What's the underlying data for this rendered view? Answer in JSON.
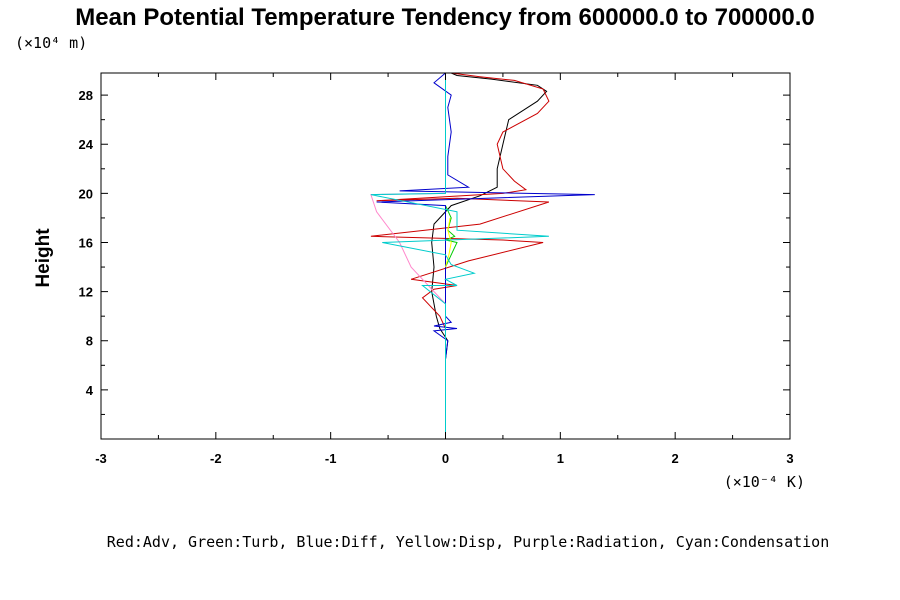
{
  "chart_data": {
    "type": "line",
    "title": "Mean Potential Temperature Tendency from 600000.0 to 700000.0",
    "ylabel": "Height",
    "y_unit": "(×10⁴ m)",
    "x_unit": "(×10⁻⁴ K)",
    "xlim": [
      -3,
      3
    ],
    "ylim": [
      0,
      29.8
    ],
    "x_ticks": [
      "-3",
      "-2",
      "-1",
      "0",
      "1",
      "2",
      "3"
    ],
    "y_ticks": [
      "4",
      "8",
      "12",
      "16",
      "20",
      "24",
      "28"
    ],
    "legend_text": "Red:Adv, Green:Turb, Blue:Diff, Yellow:Disp, Purple:Radiation, Cyan:Condensation",
    "series": [
      {
        "color": "#000000",
        "points": [
          [
            0,
            6.5
          ],
          [
            0.02,
            8
          ],
          [
            -0.05,
            9
          ],
          [
            -0.08,
            10
          ],
          [
            -0.1,
            11
          ],
          [
            -0.12,
            12
          ],
          [
            -0.1,
            14
          ],
          [
            -0.12,
            16
          ],
          [
            -0.1,
            17.5
          ],
          [
            0.05,
            19
          ],
          [
            0.3,
            19.8
          ],
          [
            0.45,
            20.5
          ],
          [
            0.45,
            22
          ],
          [
            0.5,
            24
          ],
          [
            0.55,
            26
          ],
          [
            0.8,
            27.5
          ],
          [
            0.88,
            28.3
          ],
          [
            0.8,
            28.8
          ],
          [
            0.4,
            29.3
          ],
          [
            0.1,
            29.6
          ],
          [
            0.05,
            29.8
          ]
        ]
      },
      {
        "color": "#cc0000",
        "points": [
          [
            0,
            6.5
          ],
          [
            0,
            9
          ],
          [
            -0.05,
            10
          ],
          [
            -0.2,
            11.5
          ],
          [
            -0.1,
            12.2
          ],
          [
            0.1,
            12.5
          ],
          [
            -0.3,
            13
          ],
          [
            0.2,
            14.5
          ],
          [
            0.85,
            16
          ],
          [
            0.5,
            16.2
          ],
          [
            -0.65,
            16.5
          ],
          [
            0.3,
            17.5
          ],
          [
            0.9,
            19.3
          ],
          [
            0.1,
            19.6
          ],
          [
            -0.6,
            19.4
          ],
          [
            0.5,
            20
          ],
          [
            0.7,
            20.3
          ],
          [
            0.6,
            21
          ],
          [
            0.5,
            22
          ],
          [
            0.45,
            24
          ],
          [
            0.5,
            25
          ],
          [
            0.8,
            26.5
          ],
          [
            0.9,
            27.5
          ],
          [
            0.85,
            28.5
          ],
          [
            0.6,
            29.2
          ],
          [
            0.3,
            29.5
          ],
          [
            0.05,
            29.8
          ]
        ]
      },
      {
        "color": "#00cc00",
        "points": [
          [
            0,
            14
          ],
          [
            0.05,
            15
          ],
          [
            0.1,
            16
          ],
          [
            0,
            16.2
          ],
          [
            0.08,
            16.5
          ],
          [
            0.02,
            17
          ],
          [
            0.05,
            18
          ],
          [
            0,
            19
          ]
        ]
      },
      {
        "color": "#0000cc",
        "points": [
          [
            0,
            6.5
          ],
          [
            0.02,
            8
          ],
          [
            -0.1,
            8.8
          ],
          [
            0.1,
            9
          ],
          [
            -0.1,
            9.2
          ],
          [
            0.05,
            9.5
          ],
          [
            0,
            10
          ],
          [
            0,
            19
          ],
          [
            -0.6,
            19.3
          ],
          [
            1.3,
            19.9
          ],
          [
            -0.4,
            20.2
          ],
          [
            0.2,
            20.5
          ],
          [
            0.02,
            21.5
          ],
          [
            0.02,
            23
          ],
          [
            0.05,
            25
          ],
          [
            0.02,
            27
          ],
          [
            0.05,
            28
          ],
          [
            -0.1,
            29
          ],
          [
            0,
            29.8
          ]
        ]
      },
      {
        "color": "#ffff00",
        "points": [
          [
            0,
            14
          ],
          [
            0.03,
            15
          ],
          [
            0.05,
            16
          ],
          [
            0.02,
            17
          ],
          [
            0.04,
            18
          ]
        ]
      },
      {
        "color": "#ff88cc",
        "points": [
          [
            0,
            11
          ],
          [
            -0.1,
            12
          ],
          [
            -0.3,
            14
          ],
          [
            -0.4,
            16
          ],
          [
            -0.6,
            18.5
          ],
          [
            -0.65,
            19.9
          ],
          [
            0,
            20
          ]
        ]
      },
      {
        "color": "#00cccc",
        "points": [
          [
            0,
            0
          ],
          [
            0,
            11
          ],
          [
            -0.2,
            12.5
          ],
          [
            0.1,
            12.5
          ],
          [
            0,
            13
          ],
          [
            0.25,
            13.5
          ],
          [
            0.05,
            14.2
          ],
          [
            0,
            15
          ],
          [
            -0.55,
            16
          ],
          [
            0.9,
            16.5
          ],
          [
            0.1,
            17
          ],
          [
            0.1,
            18.5
          ],
          [
            -0.65,
            19.9
          ],
          [
            0,
            20
          ],
          [
            0,
            29.8
          ]
        ]
      }
    ]
  }
}
